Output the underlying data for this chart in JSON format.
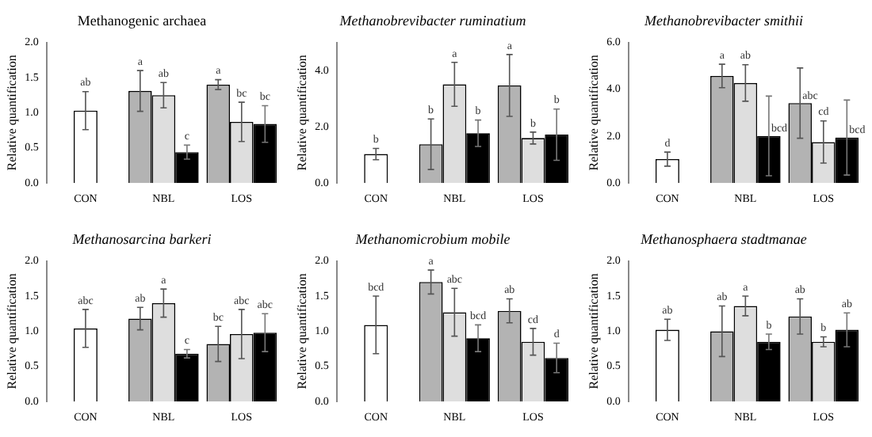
{
  "chart_data": [
    {
      "type": "bar",
      "title": "Methanogenic archaea",
      "ylabel": "Relative quantification",
      "categories": [
        "CON",
        "NBL",
        "LOS"
      ],
      "ylim": [
        0,
        2
      ],
      "yticks": [
        {
          "value": 0,
          "label": "0.0"
        },
        {
          "value": 0.5,
          "label": "0.5"
        },
        {
          "value": 1,
          "label": "1.0"
        },
        {
          "value": 1.5,
          "label": "1.5"
        },
        {
          "value": 2,
          "label": "2.0"
        }
      ],
      "grid": false,
      "legend": false,
      "series": [
        {
          "color": "#ffffff",
          "values": [
            1.03,
            null,
            null
          ],
          "errors": [
            0.27,
            null,
            null
          ],
          "value_labels": [
            "ab",
            null,
            null
          ]
        },
        {
          "color": "#b3b3b3",
          "values": [
            null,
            1.31,
            1.4
          ],
          "errors": [
            null,
            0.29,
            0.07
          ],
          "value_labels": [
            null,
            "a",
            "a"
          ]
        },
        {
          "color": "#dedede",
          "values": [
            null,
            1.25,
            0.87
          ],
          "errors": [
            null,
            0.18,
            0.28
          ],
          "value_labels": [
            null,
            "ab",
            "bc"
          ]
        },
        {
          "color": "#000000",
          "values": [
            null,
            0.44,
            0.84
          ],
          "errors": [
            null,
            0.1,
            0.26
          ],
          "value_labels": [
            null,
            "c",
            "bc"
          ]
        }
      ]
    },
    {
      "type": "bar",
      "title": "Methanobrevibacter ruminatium",
      "ylabel": "Relative quantification",
      "categories": [
        "CON",
        "NBL",
        "LOS"
      ],
      "ylim": [
        0,
        5
      ],
      "yticks": [
        {
          "value": 0,
          "label": "0.0"
        },
        {
          "value": 2,
          "label": "2.0"
        },
        {
          "value": 4,
          "label": "4.0"
        }
      ],
      "grid": false,
      "legend": false,
      "series": [
        {
          "color": "#ffffff",
          "values": [
            1.03,
            null,
            null
          ],
          "errors": [
            0.2,
            null,
            null
          ],
          "value_labels": [
            "b",
            null,
            null
          ]
        },
        {
          "color": "#b3b3b3",
          "values": [
            null,
            1.38,
            3.47
          ],
          "errors": [
            null,
            0.9,
            1.1
          ],
          "value_labels": [
            null,
            "b",
            "a"
          ]
        },
        {
          "color": "#dedede",
          "values": [
            null,
            3.51,
            1.6
          ],
          "errors": [
            null,
            0.78,
            0.21
          ],
          "value_labels": [
            null,
            "a",
            "b"
          ]
        },
        {
          "color": "#000000",
          "values": [
            null,
            1.77,
            1.72
          ],
          "errors": [
            null,
            0.47,
            0.91
          ],
          "value_labels": [
            null,
            "b",
            "b"
          ]
        }
      ]
    },
    {
      "type": "bar",
      "title": "Methanobrevibacter smithii",
      "ylabel": "Relative quantification",
      "categories": [
        "CON",
        "NBL",
        "LOS"
      ],
      "ylim": [
        0,
        6
      ],
      "yticks": [
        {
          "value": 0,
          "label": "0.0"
        },
        {
          "value": 2,
          "label": "2.0"
        },
        {
          "value": 4,
          "label": "4.0"
        },
        {
          "value": 6,
          "label": "6.0"
        }
      ],
      "grid": false,
      "legend": false,
      "series": [
        {
          "color": "#ffffff",
          "values": [
            1.02,
            null,
            null
          ],
          "errors": [
            0.3,
            null,
            null
          ],
          "value_labels": [
            "d",
            null,
            null
          ]
        },
        {
          "color": "#b3b3b3",
          "values": [
            null,
            4.57,
            3.41
          ],
          "errors": [
            null,
            0.5,
            1.5
          ],
          "value_labels": [
            null,
            "a",
            "abc"
          ]
        },
        {
          "color": "#dedede",
          "values": [
            null,
            4.27,
            1.75
          ],
          "errors": [
            null,
            0.78,
            0.9
          ],
          "value_labels": [
            null,
            "ab",
            "cd"
          ]
        },
        {
          "color": "#000000",
          "values": [
            null,
            2.01,
            1.94
          ],
          "errors": [
            null,
            1.7,
            1.6
          ],
          "value_labels": [
            null,
            "bcd",
            "bcd"
          ]
        }
      ]
    },
    {
      "type": "bar",
      "title": "Methanosarcina barkeri",
      "ylabel": "Relative quantification",
      "categories": [
        "CON",
        "NBL",
        "LOS"
      ],
      "ylim": [
        0,
        2
      ],
      "yticks": [
        {
          "value": 0,
          "label": "0.0"
        },
        {
          "value": 0.5,
          "label": "0.5"
        },
        {
          "value": 1,
          "label": "1.0"
        },
        {
          "value": 1.5,
          "label": "1.5"
        },
        {
          "value": 2,
          "label": "2.0"
        }
      ],
      "grid": false,
      "legend": false,
      "series": [
        {
          "color": "#ffffff",
          "values": [
            1.04,
            null,
            null
          ],
          "errors": [
            0.27,
            null,
            null
          ],
          "value_labels": [
            "abc",
            null,
            null
          ]
        },
        {
          "color": "#b3b3b3",
          "values": [
            null,
            1.18,
            0.82
          ],
          "errors": [
            null,
            0.16,
            0.25
          ],
          "value_labels": [
            null,
            "ab",
            "bc"
          ]
        },
        {
          "color": "#dedede",
          "values": [
            null,
            1.4,
            0.96
          ],
          "errors": [
            null,
            0.2,
            0.35
          ],
          "value_labels": [
            null,
            "a",
            "abc"
          ]
        },
        {
          "color": "#000000",
          "values": [
            null,
            0.68,
            0.98
          ],
          "errors": [
            null,
            0.06,
            0.27
          ],
          "value_labels": [
            null,
            "c",
            "abc"
          ]
        }
      ]
    },
    {
      "type": "bar",
      "title": "Methanomicrobium mobile",
      "ylabel": "Relative quantification",
      "categories": [
        "CON",
        "NBL",
        "LOS"
      ],
      "ylim": [
        0,
        2
      ],
      "yticks": [
        {
          "value": 0,
          "label": "0.0"
        },
        {
          "value": 0.5,
          "label": "0.5"
        },
        {
          "value": 1,
          "label": "1.0"
        },
        {
          "value": 1.5,
          "label": "1.5"
        },
        {
          "value": 2,
          "label": "2.0"
        }
      ],
      "grid": false,
      "legend": false,
      "series": [
        {
          "color": "#ffffff",
          "values": [
            1.09,
            null,
            null
          ],
          "errors": [
            0.41,
            null,
            null
          ],
          "value_labels": [
            "bcd",
            null,
            null
          ]
        },
        {
          "color": "#b3b3b3",
          "values": [
            null,
            1.7,
            1.29
          ],
          "errors": [
            null,
            0.17,
            0.17
          ],
          "value_labels": [
            null,
            "a",
            "ab"
          ]
        },
        {
          "color": "#dedede",
          "values": [
            null,
            1.27,
            0.85
          ],
          "errors": [
            null,
            0.34,
            0.19
          ],
          "value_labels": [
            null,
            "abc",
            "cd"
          ]
        },
        {
          "color": "#000000",
          "values": [
            null,
            0.9,
            0.62
          ],
          "errors": [
            null,
            0.19,
            0.21
          ],
          "value_labels": [
            null,
            "bcd",
            "d"
          ]
        }
      ]
    },
    {
      "type": "bar",
      "title": "Methanosphaera stadtmanae",
      "ylabel": "Relative quantification",
      "categories": [
        "CON",
        "NBL",
        "LOS"
      ],
      "ylim": [
        0,
        2
      ],
      "yticks": [
        {
          "value": 0,
          "label": "0.0"
        },
        {
          "value": 0.5,
          "label": "0.5"
        },
        {
          "value": 1,
          "label": "1.0"
        },
        {
          "value": 1.5,
          "label": "1.5"
        },
        {
          "value": 2,
          "label": "2.0"
        }
      ],
      "grid": false,
      "legend": false,
      "series": [
        {
          "color": "#ffffff",
          "values": [
            1.02,
            null,
            null
          ],
          "errors": [
            0.15,
            null,
            null
          ],
          "value_labels": [
            "ab",
            null,
            null
          ]
        },
        {
          "color": "#b3b3b3",
          "values": [
            null,
            1.0,
            1.21
          ],
          "errors": [
            null,
            0.36,
            0.25
          ],
          "value_labels": [
            null,
            "ab",
            "ab"
          ]
        },
        {
          "color": "#dedede",
          "values": [
            null,
            1.36,
            0.85
          ],
          "errors": [
            null,
            0.14,
            0.07
          ],
          "value_labels": [
            null,
            "a",
            "b"
          ]
        },
        {
          "color": "#000000",
          "values": [
            null,
            0.85,
            1.02
          ],
          "errors": [
            null,
            0.11,
            0.24
          ],
          "value_labels": [
            null,
            "b",
            "ab"
          ]
        }
      ]
    }
  ]
}
